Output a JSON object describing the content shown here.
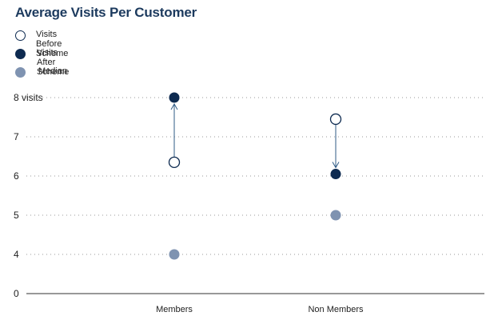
{
  "chart_data": {
    "type": "scatter",
    "title": "Average Visits Per Customer",
    "categories": [
      "Members",
      "Non Members"
    ],
    "y_ticks": [
      "8 visits",
      "7",
      "6",
      "5",
      "4",
      "0"
    ],
    "y_tick_values": [
      8,
      7,
      6,
      5,
      4,
      0
    ],
    "axis_break": true,
    "grid": true,
    "legend_position": "top-left",
    "series": [
      {
        "name": "Visits Before Scheme",
        "values": [
          6.35,
          7.45
        ],
        "style": "hollow",
        "color": "#0d2a50"
      },
      {
        "name": "Visits After Scheme",
        "values": [
          8.0,
          6.05
        ],
        "style": "filled",
        "color": "#0d2a50"
      },
      {
        "name": "Median",
        "values": [
          4.0,
          5.0
        ],
        "style": "filled",
        "color": "#7f93b1"
      }
    ],
    "arrows": [
      {
        "category": "Members",
        "from": 6.35,
        "to": 8.0
      },
      {
        "category": "Non Members",
        "from": 7.45,
        "to": 6.05
      }
    ]
  },
  "colors": {
    "dark": "#0d2a50",
    "median": "#7f93b1",
    "arrow": "#2f5b86",
    "grid": "#9a9a9a"
  }
}
